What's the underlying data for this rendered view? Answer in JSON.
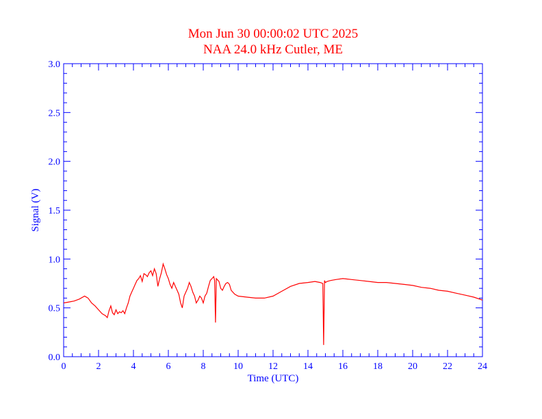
{
  "chart_data": {
    "type": "line",
    "title": "Mon Jun 30 00:00:02 UTC 2025",
    "subtitle": "NAA 24.0 kHz Cutler, ME",
    "xlabel": "Time (UTC)",
    "ylabel": "Signal (V)",
    "xlim": [
      0,
      24
    ],
    "ylim": [
      0,
      3.0
    ],
    "x_ticks": [
      "0",
      "2",
      "4",
      "6",
      "8",
      "10",
      "12",
      "14",
      "16",
      "18",
      "20",
      "22",
      "24"
    ],
    "y_ticks": [
      "0.0",
      "0.5",
      "1.0",
      "1.5",
      "2.0",
      "2.5",
      "3.0"
    ],
    "grid": false,
    "series": [
      {
        "color": "#ff0000",
        "x": [
          0,
          0.3,
          0.6,
          0.9,
          1.2,
          1.4,
          1.6,
          1.8,
          2.0,
          2.2,
          2.4,
          2.5,
          2.6,
          2.7,
          2.8,
          2.9,
          3.0,
          3.1,
          3.2,
          3.3,
          3.4,
          3.5,
          3.6,
          3.7,
          3.8,
          3.9,
          4.0,
          4.1,
          4.2,
          4.3,
          4.4,
          4.5,
          4.6,
          4.7,
          4.8,
          4.9,
          5.0,
          5.1,
          5.2,
          5.3,
          5.4,
          5.5,
          5.6,
          5.7,
          5.8,
          5.9,
          6.0,
          6.1,
          6.2,
          6.3,
          6.4,
          6.5,
          6.6,
          6.7,
          6.8,
          6.9,
          7.0,
          7.1,
          7.2,
          7.3,
          7.4,
          7.5,
          7.6,
          7.7,
          7.8,
          7.9,
          8.0,
          8.1,
          8.2,
          8.3,
          8.4,
          8.5,
          8.6,
          8.65,
          8.7,
          8.75,
          8.8,
          8.9,
          9.0,
          9.1,
          9.2,
          9.3,
          9.4,
          9.5,
          9.6,
          9.8,
          10.0,
          10.5,
          11.0,
          11.5,
          12.0,
          12.5,
          13.0,
          13.5,
          14.0,
          14.4,
          14.7,
          14.85,
          14.9,
          14.95,
          15.0,
          15.1,
          15.3,
          15.6,
          16.0,
          16.5,
          17.0,
          17.5,
          18.0,
          18.5,
          19.0,
          19.5,
          20.0,
          20.5,
          21.0,
          21.5,
          22.0,
          22.5,
          23.0,
          23.5,
          24.0
        ],
        "values": [
          0.55,
          0.56,
          0.57,
          0.59,
          0.62,
          0.6,
          0.55,
          0.52,
          0.48,
          0.44,
          0.42,
          0.4,
          0.47,
          0.52,
          0.45,
          0.43,
          0.48,
          0.44,
          0.46,
          0.45,
          0.47,
          0.44,
          0.5,
          0.55,
          0.62,
          0.66,
          0.7,
          0.74,
          0.78,
          0.8,
          0.83,
          0.77,
          0.85,
          0.84,
          0.82,
          0.86,
          0.88,
          0.83,
          0.9,
          0.85,
          0.72,
          0.8,
          0.86,
          0.95,
          0.9,
          0.84,
          0.8,
          0.74,
          0.7,
          0.76,
          0.72,
          0.68,
          0.64,
          0.55,
          0.5,
          0.62,
          0.66,
          0.7,
          0.76,
          0.72,
          0.66,
          0.62,
          0.55,
          0.58,
          0.62,
          0.6,
          0.55,
          0.62,
          0.65,
          0.72,
          0.78,
          0.8,
          0.82,
          0.78,
          0.35,
          0.8,
          0.79,
          0.77,
          0.7,
          0.68,
          0.72,
          0.75,
          0.76,
          0.74,
          0.68,
          0.64,
          0.62,
          0.61,
          0.6,
          0.6,
          0.62,
          0.67,
          0.72,
          0.75,
          0.76,
          0.77,
          0.76,
          0.75,
          0.12,
          0.78,
          0.76,
          0.77,
          0.78,
          0.79,
          0.8,
          0.79,
          0.78,
          0.77,
          0.76,
          0.76,
          0.75,
          0.74,
          0.73,
          0.71,
          0.7,
          0.68,
          0.67,
          0.65,
          0.63,
          0.61,
          0.58
        ]
      }
    ]
  }
}
